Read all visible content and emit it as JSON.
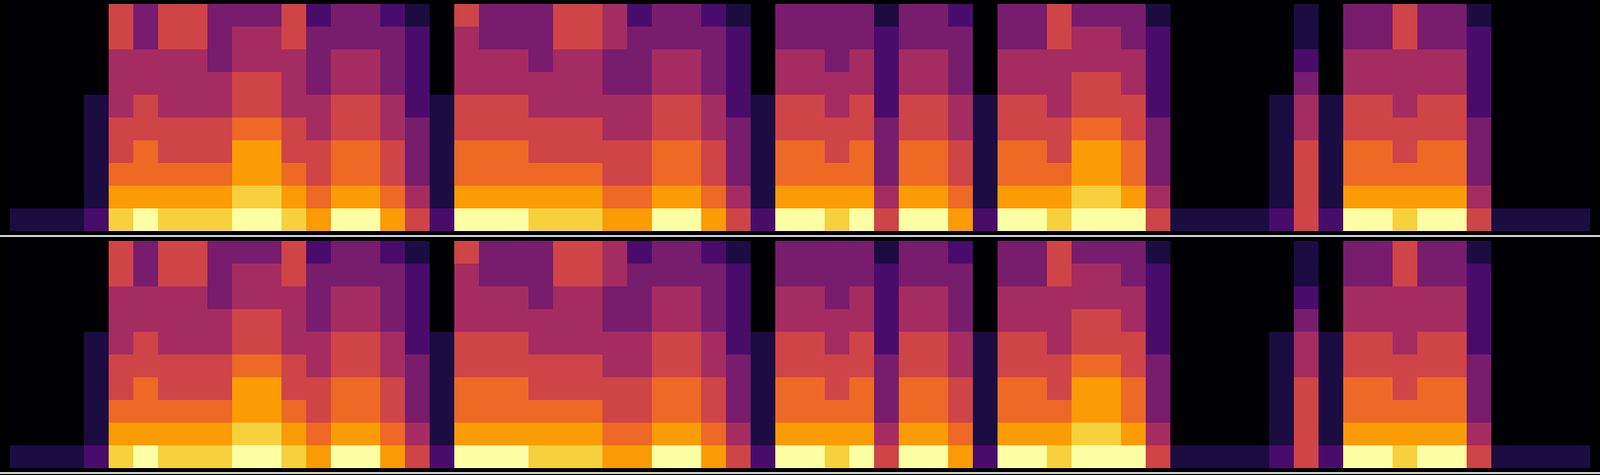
{
  "chart_data": [
    {
      "type": "heatmap",
      "tick_labels": false,
      "color": "inferno",
      "zlim": [
        0,
        9
      ],
      "cells": [
        [
          0,
          0,
          0,
          0,
          0,
          0,
          0,
          0,
          0,
          1
        ],
        [
          0,
          0,
          0,
          0,
          0,
          0,
          0,
          0,
          0,
          1
        ],
        [
          0,
          0,
          0,
          0,
          0,
          0,
          0,
          0,
          0,
          1
        ],
        [
          0,
          0,
          0,
          0,
          1,
          1,
          1,
          1,
          1,
          2
        ],
        [
          5,
          5,
          4,
          4,
          4,
          5,
          5,
          6,
          7,
          8
        ],
        [
          3,
          3,
          4,
          4,
          5,
          5,
          6,
          6,
          7,
          9
        ],
        [
          5,
          5,
          4,
          4,
          4,
          5,
          5,
          6,
          7,
          8
        ],
        [
          5,
          5,
          4,
          4,
          4,
          5,
          5,
          6,
          7,
          8
        ],
        [
          3,
          3,
          3,
          4,
          4,
          5,
          5,
          6,
          7,
          8
        ],
        [
          3,
          4,
          4,
          5,
          5,
          6,
          7,
          7,
          8,
          9
        ],
        [
          3,
          4,
          4,
          5,
          5,
          6,
          7,
          7,
          8,
          9
        ],
        [
          5,
          5,
          4,
          4,
          4,
          5,
          5,
          6,
          7,
          8
        ],
        [
          2,
          3,
          3,
          3,
          4,
          4,
          5,
          5,
          6,
          7
        ],
        [
          3,
          3,
          4,
          4,
          5,
          5,
          6,
          6,
          7,
          9
        ],
        [
          3,
          3,
          4,
          4,
          5,
          5,
          6,
          6,
          7,
          9
        ],
        [
          2,
          3,
          3,
          3,
          4,
          4,
          5,
          5,
          6,
          7
        ],
        [
          1,
          2,
          2,
          2,
          2,
          3,
          3,
          3,
          4,
          5
        ],
        [
          0,
          0,
          0,
          0,
          1,
          1,
          1,
          1,
          1,
          2
        ],
        [
          5,
          4,
          4,
          4,
          5,
          5,
          6,
          6,
          7,
          9
        ],
        [
          3,
          3,
          4,
          4,
          5,
          5,
          6,
          6,
          7,
          9
        ],
        [
          3,
          3,
          4,
          4,
          5,
          5,
          6,
          6,
          7,
          9
        ],
        [
          3,
          3,
          3,
          4,
          4,
          5,
          5,
          6,
          7,
          8
        ],
        [
          5,
          5,
          4,
          4,
          4,
          5,
          5,
          6,
          7,
          8
        ],
        [
          5,
          5,
          4,
          4,
          4,
          5,
          5,
          6,
          7,
          8
        ],
        [
          4,
          4,
          3,
          3,
          4,
          4,
          5,
          5,
          6,
          7
        ],
        [
          2,
          3,
          3,
          3,
          4,
          4,
          5,
          5,
          6,
          7
        ],
        [
          3,
          3,
          4,
          4,
          5,
          5,
          6,
          6,
          7,
          9
        ],
        [
          3,
          3,
          4,
          4,
          5,
          5,
          6,
          6,
          7,
          9
        ],
        [
          2,
          3,
          3,
          3,
          4,
          4,
          5,
          5,
          6,
          7
        ],
        [
          1,
          2,
          2,
          2,
          2,
          3,
          3,
          3,
          4,
          5
        ],
        [
          0,
          0,
          0,
          0,
          1,
          1,
          1,
          1,
          1,
          2
        ],
        [
          3,
          3,
          4,
          4,
          5,
          5,
          6,
          6,
          7,
          9
        ],
        [
          3,
          3,
          4,
          4,
          5,
          5,
          6,
          6,
          7,
          9
        ],
        [
          3,
          3,
          3,
          4,
          4,
          5,
          5,
          6,
          7,
          8
        ],
        [
          3,
          3,
          4,
          4,
          5,
          5,
          6,
          6,
          7,
          9
        ],
        [
          1,
          2,
          2,
          2,
          2,
          3,
          3,
          3,
          4,
          5
        ],
        [
          3,
          3,
          4,
          4,
          5,
          5,
          6,
          6,
          7,
          9
        ],
        [
          3,
          3,
          4,
          4,
          5,
          5,
          6,
          6,
          7,
          9
        ],
        [
          2,
          3,
          3,
          3,
          4,
          4,
          5,
          5,
          6,
          7
        ],
        [
          0,
          0,
          0,
          0,
          1,
          1,
          1,
          1,
          1,
          2
        ],
        [
          3,
          3,
          4,
          4,
          5,
          5,
          6,
          6,
          7,
          9
        ],
        [
          3,
          3,
          4,
          4,
          5,
          5,
          6,
          6,
          7,
          9
        ],
        [
          5,
          5,
          4,
          4,
          4,
          5,
          5,
          6,
          7,
          8
        ],
        [
          3,
          4,
          4,
          5,
          5,
          6,
          7,
          7,
          8,
          9
        ],
        [
          3,
          4,
          4,
          5,
          5,
          6,
          7,
          7,
          8,
          9
        ],
        [
          3,
          3,
          4,
          4,
          5,
          5,
          6,
          6,
          7,
          9
        ],
        [
          1,
          2,
          2,
          2,
          2,
          3,
          3,
          3,
          4,
          5
        ],
        [
          0,
          0,
          0,
          0,
          0,
          0,
          0,
          0,
          0,
          1
        ],
        [
          0,
          0,
          0,
          0,
          0,
          0,
          0,
          0,
          0,
          1
        ],
        [
          0,
          0,
          0,
          0,
          0,
          0,
          0,
          0,
          0,
          1
        ],
        [
          0,
          0,
          0,
          0,
          0,
          0,
          0,
          0,
          0,
          1
        ],
        [
          0,
          0,
          0,
          0,
          1,
          1,
          1,
          1,
          1,
          2
        ],
        [
          1,
          1,
          2,
          3,
          4,
          4,
          5,
          5,
          5,
          5
        ],
        [
          0,
          0,
          0,
          0,
          1,
          1,
          1,
          1,
          1,
          2
        ],
        [
          3,
          3,
          4,
          4,
          5,
          5,
          6,
          6,
          7,
          9
        ],
        [
          3,
          3,
          4,
          4,
          5,
          5,
          6,
          6,
          7,
          9
        ],
        [
          5,
          5,
          4,
          4,
          4,
          5,
          5,
          6,
          7,
          8
        ],
        [
          3,
          3,
          4,
          4,
          5,
          5,
          6,
          6,
          7,
          9
        ],
        [
          3,
          3,
          4,
          4,
          5,
          5,
          6,
          6,
          7,
          9
        ],
        [
          1,
          2,
          2,
          2,
          2,
          3,
          3,
          3,
          4,
          5
        ],
        [
          0,
          0,
          0,
          0,
          0,
          0,
          0,
          0,
          0,
          1
        ],
        [
          0,
          0,
          0,
          0,
          0,
          0,
          0,
          0,
          0,
          1
        ],
        [
          0,
          0,
          0,
          0,
          0,
          0,
          0,
          0,
          0,
          1
        ],
        [
          0,
          0,
          0,
          0,
          0,
          0,
          0,
          0,
          0,
          1
        ]
      ]
    },
    {
      "type": "heatmap",
      "tick_labels": false,
      "color": "inferno",
      "zlim": [
        0,
        9
      ],
      "cells": [
        [
          0,
          0,
          0,
          0,
          0,
          0,
          0,
          0,
          0,
          1
        ],
        [
          0,
          0,
          0,
          0,
          0,
          0,
          0,
          0,
          0,
          1
        ],
        [
          0,
          0,
          0,
          0,
          0,
          0,
          0,
          0,
          0,
          1
        ],
        [
          0,
          0,
          0,
          0,
          1,
          1,
          1,
          1,
          1,
          2
        ],
        [
          5,
          5,
          4,
          4,
          4,
          5,
          5,
          6,
          7,
          8
        ],
        [
          3,
          3,
          4,
          4,
          5,
          5,
          6,
          6,
          7,
          9
        ],
        [
          5,
          5,
          4,
          4,
          4,
          5,
          5,
          6,
          7,
          8
        ],
        [
          5,
          5,
          4,
          4,
          4,
          5,
          5,
          6,
          7,
          8
        ],
        [
          3,
          3,
          3,
          4,
          4,
          5,
          5,
          6,
          7,
          8
        ],
        [
          3,
          4,
          4,
          5,
          5,
          6,
          7,
          7,
          8,
          9
        ],
        [
          3,
          4,
          4,
          5,
          5,
          6,
          7,
          7,
          8,
          9
        ],
        [
          5,
          5,
          4,
          4,
          4,
          5,
          5,
          6,
          7,
          8
        ],
        [
          2,
          3,
          3,
          3,
          4,
          4,
          5,
          5,
          6,
          7
        ],
        [
          3,
          3,
          4,
          4,
          5,
          5,
          6,
          6,
          7,
          9
        ],
        [
          3,
          3,
          4,
          4,
          5,
          5,
          6,
          6,
          7,
          9
        ],
        [
          2,
          3,
          3,
          3,
          4,
          4,
          5,
          5,
          6,
          7
        ],
        [
          1,
          2,
          2,
          2,
          2,
          3,
          3,
          3,
          4,
          5
        ],
        [
          0,
          0,
          0,
          0,
          1,
          1,
          1,
          1,
          1,
          2
        ],
        [
          5,
          4,
          4,
          4,
          5,
          5,
          6,
          6,
          7,
          9
        ],
        [
          3,
          3,
          4,
          4,
          5,
          5,
          6,
          6,
          7,
          9
        ],
        [
          3,
          3,
          4,
          4,
          5,
          5,
          6,
          6,
          7,
          9
        ],
        [
          3,
          3,
          3,
          4,
          4,
          5,
          5,
          6,
          7,
          8
        ],
        [
          5,
          5,
          4,
          4,
          4,
          5,
          5,
          6,
          7,
          8
        ],
        [
          5,
          5,
          4,
          4,
          4,
          5,
          5,
          6,
          7,
          8
        ],
        [
          4,
          4,
          3,
          3,
          4,
          4,
          5,
          5,
          6,
          7
        ],
        [
          2,
          3,
          3,
          3,
          4,
          4,
          5,
          5,
          6,
          7
        ],
        [
          3,
          3,
          4,
          4,
          5,
          5,
          6,
          6,
          7,
          9
        ],
        [
          3,
          3,
          4,
          4,
          5,
          5,
          6,
          6,
          7,
          9
        ],
        [
          2,
          3,
          3,
          3,
          4,
          4,
          5,
          5,
          6,
          7
        ],
        [
          1,
          2,
          2,
          2,
          2,
          3,
          3,
          3,
          4,
          5
        ],
        [
          0,
          0,
          0,
          0,
          1,
          1,
          1,
          1,
          1,
          2
        ],
        [
          3,
          3,
          4,
          4,
          5,
          5,
          6,
          6,
          7,
          9
        ],
        [
          3,
          3,
          4,
          4,
          5,
          5,
          6,
          6,
          7,
          9
        ],
        [
          3,
          3,
          3,
          4,
          4,
          5,
          5,
          6,
          7,
          8
        ],
        [
          3,
          3,
          4,
          4,
          5,
          5,
          6,
          6,
          7,
          9
        ],
        [
          1,
          2,
          2,
          2,
          2,
          3,
          3,
          3,
          4,
          5
        ],
        [
          3,
          3,
          4,
          4,
          5,
          5,
          6,
          6,
          7,
          9
        ],
        [
          3,
          3,
          4,
          4,
          5,
          5,
          6,
          6,
          7,
          9
        ],
        [
          2,
          3,
          3,
          3,
          4,
          4,
          5,
          5,
          6,
          7
        ],
        [
          0,
          0,
          0,
          0,
          1,
          1,
          1,
          1,
          1,
          2
        ],
        [
          3,
          3,
          4,
          4,
          5,
          5,
          6,
          6,
          7,
          9
        ],
        [
          3,
          3,
          4,
          4,
          5,
          5,
          6,
          6,
          7,
          9
        ],
        [
          5,
          5,
          4,
          4,
          4,
          5,
          5,
          6,
          7,
          8
        ],
        [
          3,
          4,
          4,
          5,
          5,
          6,
          7,
          7,
          8,
          9
        ],
        [
          3,
          4,
          4,
          5,
          5,
          6,
          7,
          7,
          8,
          9
        ],
        [
          3,
          3,
          4,
          4,
          5,
          5,
          6,
          6,
          7,
          9
        ],
        [
          1,
          2,
          2,
          2,
          2,
          3,
          3,
          3,
          4,
          5
        ],
        [
          0,
          0,
          0,
          0,
          0,
          0,
          0,
          0,
          0,
          1
        ],
        [
          0,
          0,
          0,
          0,
          0,
          0,
          0,
          0,
          0,
          1
        ],
        [
          0,
          0,
          0,
          0,
          0,
          0,
          0,
          0,
          0,
          1
        ],
        [
          0,
          0,
          0,
          0,
          0,
          0,
          0,
          0,
          0,
          1
        ],
        [
          0,
          0,
          0,
          0,
          1,
          1,
          1,
          1,
          1,
          2
        ],
        [
          1,
          1,
          2,
          3,
          4,
          4,
          5,
          5,
          5,
          5
        ],
        [
          0,
          0,
          0,
          0,
          1,
          1,
          1,
          1,
          1,
          2
        ],
        [
          3,
          3,
          4,
          4,
          5,
          5,
          6,
          6,
          7,
          9
        ],
        [
          3,
          3,
          4,
          4,
          5,
          5,
          6,
          6,
          7,
          9
        ],
        [
          5,
          5,
          4,
          4,
          4,
          5,
          5,
          6,
          7,
          8
        ],
        [
          3,
          3,
          4,
          4,
          5,
          5,
          6,
          6,
          7,
          9
        ],
        [
          3,
          3,
          4,
          4,
          5,
          5,
          6,
          6,
          7,
          9
        ],
        [
          1,
          2,
          2,
          2,
          2,
          3,
          3,
          3,
          4,
          5
        ],
        [
          0,
          0,
          0,
          0,
          0,
          0,
          0,
          0,
          0,
          1
        ],
        [
          0,
          0,
          0,
          0,
          0,
          0,
          0,
          0,
          0,
          1
        ],
        [
          0,
          0,
          0,
          0,
          0,
          0,
          0,
          0,
          0,
          1
        ],
        [
          0,
          0,
          0,
          0,
          0,
          0,
          0,
          0,
          0,
          1
        ]
      ]
    }
  ]
}
